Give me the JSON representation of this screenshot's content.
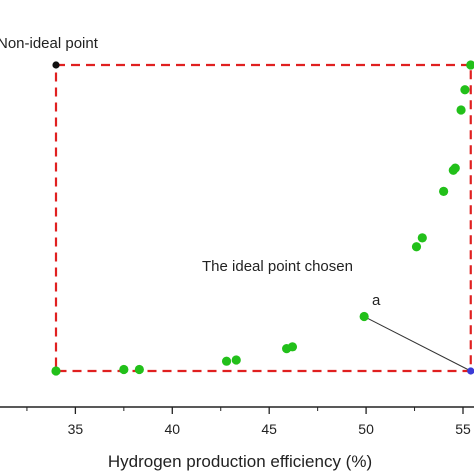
{
  "chart_data": {
    "type": "scatter",
    "xlabel": "Hydrogen production efficiency (%)",
    "xlim": [
      30,
      55.5
    ],
    "ylim": [
      0,
      1
    ],
    "xticks": [
      35,
      40,
      45,
      50,
      55
    ],
    "xtick_labels": [
      "35",
      "40",
      "45",
      "50",
      "55"
    ],
    "grid": false,
    "series": [
      {
        "color": "#22c01a",
        "points": [
          {
            "x": 34.0,
            "y": 0.0
          },
          {
            "x": 37.5,
            "y": 0.005
          },
          {
            "x": 38.3,
            "y": 0.005
          },
          {
            "x": 42.8,
            "y": 0.032
          },
          {
            "x": 43.3,
            "y": 0.036
          },
          {
            "x": 45.9,
            "y": 0.073
          },
          {
            "x": 46.2,
            "y": 0.079
          },
          {
            "x": 49.9,
            "y": 0.178
          },
          {
            "x": 52.6,
            "y": 0.406
          },
          {
            "x": 52.9,
            "y": 0.435
          },
          {
            "x": 54.0,
            "y": 0.587
          },
          {
            "x": 54.5,
            "y": 0.656
          },
          {
            "x": 54.6,
            "y": 0.663
          },
          {
            "x": 54.9,
            "y": 0.853
          },
          {
            "x": 55.1,
            "y": 0.919
          },
          {
            "x": 55.4,
            "y": 1.0
          }
        ]
      }
    ],
    "special_points": [
      {
        "x": 34.0,
        "y": 1.0,
        "color": "#111111"
      },
      {
        "x": 55.4,
        "y": 0.0,
        "color": "#3b3bd6"
      }
    ],
    "box": {
      "x0": 34.0,
      "x1": 55.4,
      "y0": 0.0,
      "y1": 1.0,
      "color": "#e02020"
    },
    "connector": {
      "from": {
        "x": 49.9,
        "y": 0.178
      },
      "to": {
        "x": 55.4,
        "y": 0.0
      }
    },
    "annotations": {
      "non_ideal": "Non-ideal point",
      "ideal": "The ideal point chosen",
      "point_label": "a"
    }
  }
}
